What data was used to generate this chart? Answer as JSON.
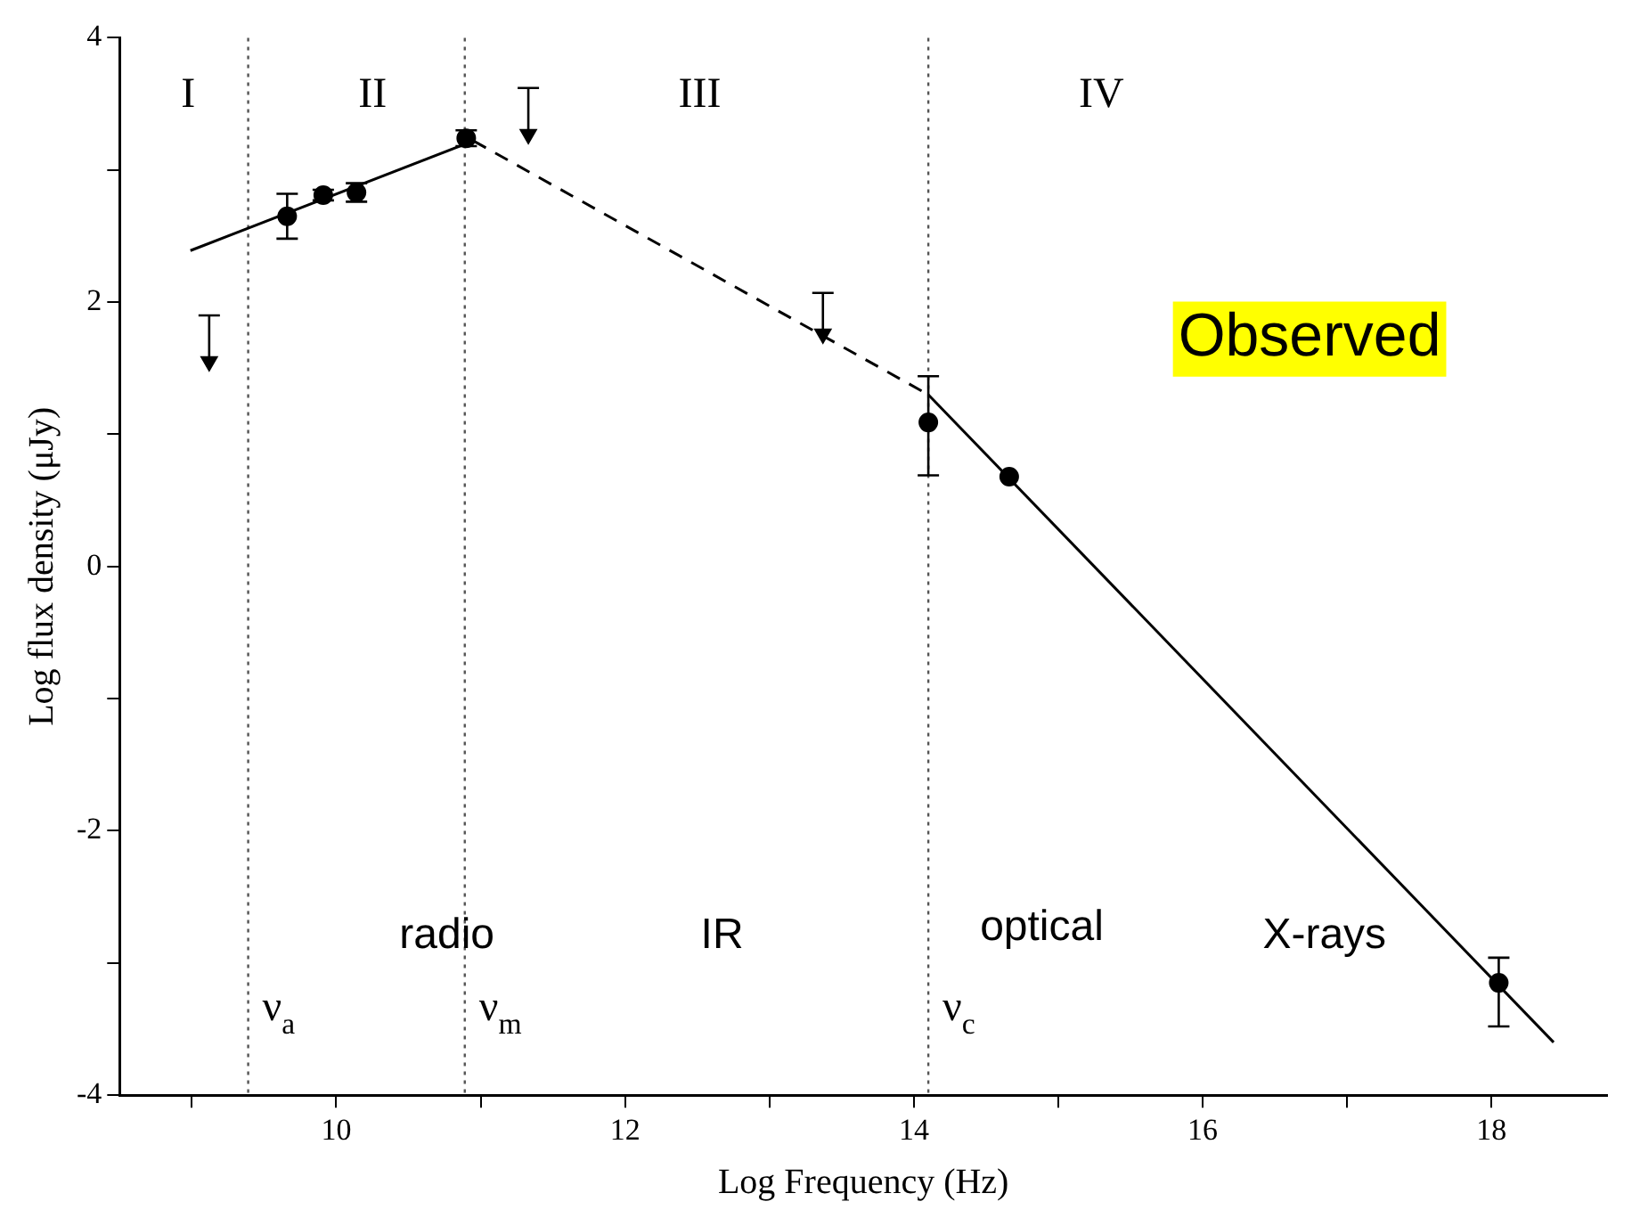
{
  "chart_data": {
    "type": "scatter",
    "xlabel": "Log Frequency (Hz)",
    "ylabel": "Log flux density (μJy)",
    "xlim": [
      8.5,
      18.8
    ],
    "ylim": [
      -4,
      4
    ],
    "xticks": [
      {
        "value": 9,
        "label": null
      },
      10,
      {
        "value": 11,
        "label": null
      },
      12,
      {
        "value": 13,
        "label": null
      },
      14,
      {
        "value": 15,
        "label": null
      },
      16,
      {
        "value": 17,
        "label": null
      },
      18
    ],
    "yticks": [
      -4,
      {
        "value": -3,
        "label": null
      },
      -2,
      {
        "value": -1,
        "label": null
      },
      0,
      {
        "value": 1,
        "label": null
      },
      2,
      {
        "value": 3,
        "label": null
      },
      4
    ],
    "grid": false,
    "legend": false,
    "series": [
      {
        "type": "scatter",
        "color": "#000000",
        "marker": "circle",
        "x": [
          9.66,
          9.91,
          10.14,
          10.9,
          14.1,
          14.66,
          18.05
        ],
        "values": [
          2.65,
          2.81,
          2.83,
          3.24,
          1.09,
          0.68,
          -3.15
        ],
        "errors": [
          [
            2.48,
            2.82
          ],
          [
            2.77,
            2.85
          ],
          [
            2.76,
            2.9
          ],
          [
            3.18,
            3.3
          ],
          [
            0.69,
            1.44
          ],
          null,
          [
            -3.48,
            -2.96
          ]
        ]
      },
      {
        "type": "scatter",
        "color": "#000000",
        "marker": "triangle",
        "x": [
          9.12,
          11.33,
          13.37
        ],
        "values": [
          1.55,
          3.27,
          1.76
        ],
        "errors": [
          [
            1.55,
            1.9
          ],
          [
            3.27,
            3.62
          ],
          [
            1.76,
            2.07
          ]
        ]
      },
      {
        "type": "line",
        "color": "#000000",
        "marker": "none",
        "line_style": "solid",
        "x": [
          8.99,
          10.95
        ],
        "values": [
          2.39,
          3.22
        ]
      },
      {
        "type": "line",
        "color": "#000000",
        "marker": "none",
        "line_style": "dashed",
        "x": [
          10.95,
          14.1
        ],
        "values": [
          3.22,
          1.3
        ]
      },
      {
        "type": "line",
        "color": "#000000",
        "marker": "none",
        "line_style": "solid",
        "x": [
          14.1,
          18.43
        ],
        "values": [
          1.3,
          -3.6
        ]
      }
    ],
    "ref_lines": [
      {
        "axis": "x",
        "value": 9.39,
        "label": "ν$_{a}$",
        "line_style": "dotted",
        "color": "#555555"
      },
      {
        "axis": "x",
        "value": 10.89,
        "label": "ν$_{m}$",
        "line_style": "dotted",
        "color": "#555555"
      },
      {
        "axis": "x",
        "value": 14.1,
        "label": "ν$_{c}$",
        "line_style": "dotted",
        "color": "#555555"
      }
    ],
    "annotations": [
      "I",
      "II",
      "III",
      "IV",
      "radio",
      "IR",
      "optical",
      "X-rays",
      "Observed"
    ]
  }
}
